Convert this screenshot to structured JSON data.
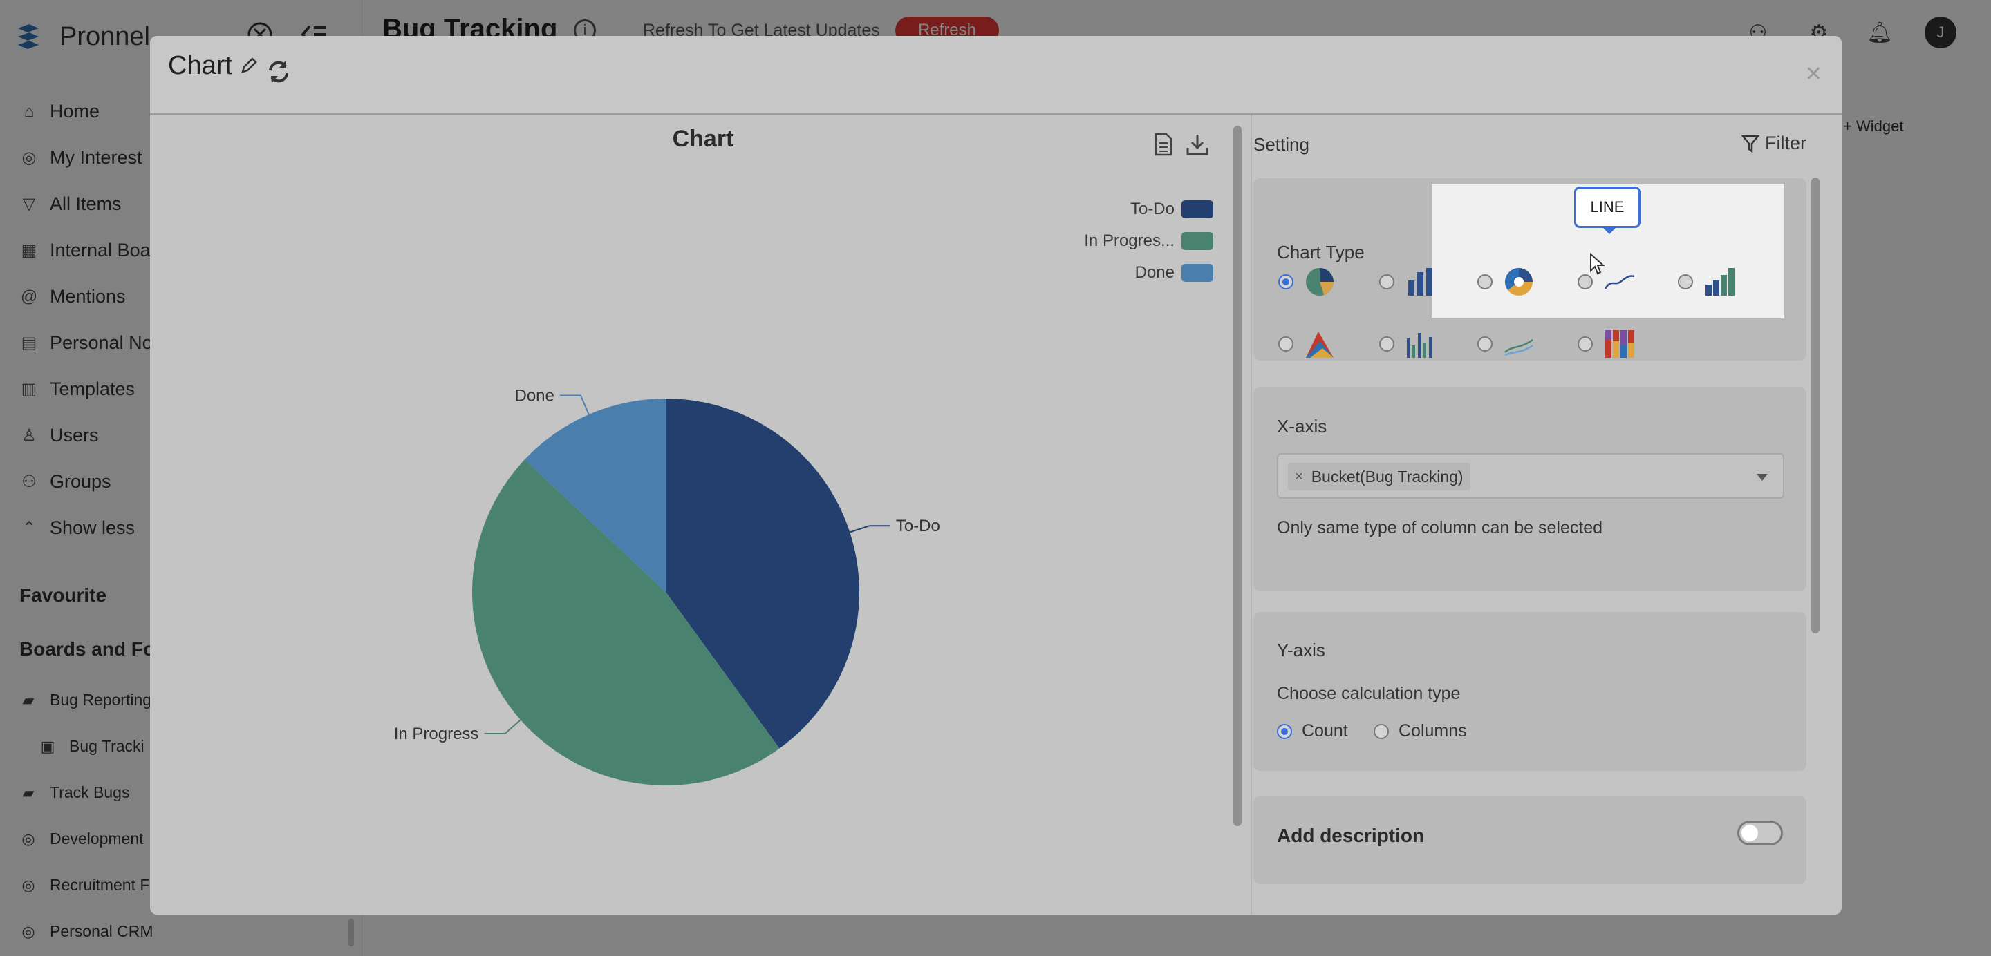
{
  "app": {
    "brand": "Pronnel",
    "nav": [
      {
        "label": "Home",
        "icon": "home-icon",
        "glyph": "⌂"
      },
      {
        "label": "My Interest",
        "icon": "target-icon",
        "glyph": "◎"
      },
      {
        "label": "All Items",
        "icon": "filter-icon",
        "glyph": "▽"
      },
      {
        "label": "Internal Boa",
        "icon": "boards-icon",
        "glyph": "▦"
      },
      {
        "label": "Mentions",
        "icon": "at-icon",
        "glyph": "@"
      },
      {
        "label": "Personal No",
        "icon": "note-icon",
        "glyph": "▤"
      },
      {
        "label": "Templates",
        "icon": "template-icon",
        "glyph": "▥"
      },
      {
        "label": "Users",
        "icon": "user-icon",
        "glyph": "♙"
      },
      {
        "label": "Groups",
        "icon": "groups-icon",
        "glyph": "⚇"
      },
      {
        "label": "Show less",
        "icon": "chevron-up-icon",
        "glyph": "⌃"
      }
    ],
    "favourite": "Favourite",
    "boards_title": "Boards and Fo",
    "boards": [
      {
        "label": "Bug Reporting",
        "icon": "folder-icon",
        "glyph": "▰",
        "sub": false
      },
      {
        "label": "Bug Tracki",
        "icon": "briefcase-icon",
        "glyph": "▣",
        "sub": true
      },
      {
        "label": "Track Bugs",
        "icon": "folder-icon",
        "glyph": "▰",
        "sub": false
      },
      {
        "label": "Development",
        "icon": "target-icon",
        "glyph": "◎",
        "sub": false
      },
      {
        "label": "Recruitment F",
        "icon": "target-icon",
        "glyph": "◎",
        "sub": false
      },
      {
        "label": "Personal CRM",
        "icon": "target-icon",
        "glyph": "◎",
        "sub": false
      }
    ],
    "page_title": "Bug Tracking",
    "refresh_text": "Refresh To Get Latest Updates",
    "refresh_button": "Refresh",
    "avatar_initial": "J",
    "add_widget": "+ Widget"
  },
  "modal": {
    "title": "Chart",
    "setting_label": "Setting",
    "filter_label": "Filter",
    "chart_type_label": "Chart Type",
    "tooltip": "LINE",
    "chart_types": [
      {
        "name": "pie",
        "icon": "pie-chart-icon",
        "checked": true
      },
      {
        "name": "bar",
        "icon": "bar-chart-icon",
        "checked": false
      },
      {
        "name": "doughnut",
        "icon": "doughnut-chart-icon",
        "checked": false
      },
      {
        "name": "line",
        "icon": "line-chart-icon",
        "checked": false
      },
      {
        "name": "stacked-bar",
        "icon": "stacked-bar-chart-icon",
        "checked": false
      },
      {
        "name": "area",
        "icon": "area-chart-icon",
        "checked": false
      },
      {
        "name": "grouped-bar",
        "icon": "grouped-bar-chart-icon",
        "checked": false
      },
      {
        "name": "multi-line",
        "icon": "multi-line-chart-icon",
        "checked": false
      },
      {
        "name": "stacked-column",
        "icon": "stacked-column-chart-icon",
        "checked": false
      }
    ],
    "x_axis": {
      "label": "X-axis",
      "selected_tag": "Bucket(Bug Tracking)",
      "hint": "Only same type of column can be selected"
    },
    "y_axis": {
      "label": "Y-axis",
      "calc_label": "Choose calculation type",
      "options": [
        {
          "label": "Count",
          "checked": true
        },
        {
          "label": "Columns",
          "checked": false
        }
      ]
    },
    "add_description": "Add description"
  },
  "chart_data": {
    "type": "pie",
    "title": "Chart",
    "legend_position": "top-right",
    "legend": [
      "To-Do",
      "In Progres...",
      "Done"
    ],
    "slices": [
      {
        "label": "To-Do",
        "value": 40,
        "color": "#233f6e"
      },
      {
        "label": "In Progress",
        "value": 47,
        "color": "#4a8270"
      },
      {
        "label": "Done",
        "value": 13,
        "color": "#4a7fad"
      }
    ]
  }
}
